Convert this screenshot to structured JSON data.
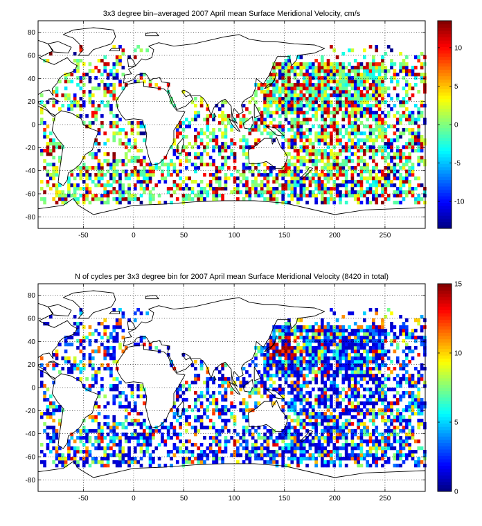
{
  "chart_data": [
    {
      "type": "heatmap",
      "title": "3x3 degree bin–averaged 2007 April mean Surface Meridional Velocity, cm/s",
      "xlabel": "",
      "ylabel": "",
      "xlim": [
        -95,
        290
      ],
      "ylim": [
        -90,
        90
      ],
      "xticks": [
        -50,
        0,
        50,
        100,
        150,
        200,
        250
      ],
      "yticks": [
        -80,
        -60,
        -40,
        -20,
        0,
        20,
        40,
        60,
        80
      ],
      "bin_size_deg": 3,
      "grid": true,
      "colormap": "jet",
      "colorbar": {
        "clim": [
          -13.5,
          13.5
        ],
        "ticks": [
          -10,
          -5,
          0,
          5,
          10
        ],
        "placement": "right"
      },
      "field": "meridional-velocity"
    },
    {
      "type": "heatmap",
      "title": "N of cycles per 3x3 degree bin for 2007 April mean Surface Meridional Velocity (8420 in total)",
      "xlabel": "",
      "ylabel": "",
      "xlim": [
        -95,
        290
      ],
      "ylim": [
        -90,
        90
      ],
      "xticks": [
        -50,
        0,
        50,
        100,
        150,
        200,
        250
      ],
      "yticks": [
        -80,
        -60,
        -40,
        -20,
        0,
        20,
        40,
        60,
        80
      ],
      "bin_size_deg": 3,
      "grid": true,
      "colormap": "jet",
      "colorbar": {
        "clim": [
          0,
          15
        ],
        "ticks": [
          0,
          5,
          10,
          15
        ],
        "placement": "right"
      },
      "total_cycles": 8420,
      "field": "cycle-count"
    }
  ]
}
